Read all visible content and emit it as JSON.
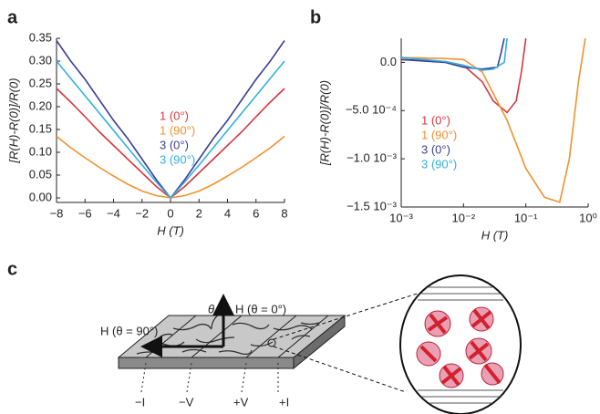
{
  "chart_data": [
    {
      "type": "line",
      "label": "a",
      "ylabel": "[R(H)-R(0)]/R(0)",
      "xlabel": "H (T)",
      "x": [
        -8,
        -7,
        -6,
        -5,
        -4,
        -3,
        -2,
        -1,
        0,
        1,
        2,
        3,
        4,
        5,
        6,
        7,
        8
      ],
      "xlim": [
        -8,
        8
      ],
      "xticks": [
        {
          "value": -8,
          "label": "−8"
        },
        {
          "value": -6,
          "label": "−6"
        },
        {
          "value": -4,
          "label": "−4"
        },
        {
          "value": -2,
          "label": "−2"
        },
        0,
        2,
        4,
        6,
        8
      ],
      "ylim": [
        -0.01,
        0.35
      ],
      "yticks": [
        {
          "value": 0,
          "label": "0.00"
        },
        {
          "value": 0.05,
          "label": "0.05"
        },
        {
          "value": 0.1,
          "label": "0.10"
        },
        {
          "value": 0.15,
          "label": "0.15"
        },
        {
          "value": 0.2,
          "label": "0.20"
        },
        {
          "value": 0.25,
          "label": "0.25"
        },
        {
          "value": 0.3,
          "label": "0.30"
        },
        {
          "value": 0.35,
          "label": "0.35"
        }
      ],
      "series": [
        {
          "name": "1 (0°)",
          "color": "#d9363e",
          "values": [
            0.24,
            0.21,
            0.178,
            0.145,
            0.115,
            0.085,
            0.055,
            0.025,
            0,
            0.025,
            0.055,
            0.085,
            0.115,
            0.145,
            0.178,
            0.21,
            0.24
          ]
        },
        {
          "name": "1 (90°)",
          "color": "#f0922e",
          "values": [
            0.135,
            0.11,
            0.088,
            0.067,
            0.048,
            0.03,
            0.015,
            0.005,
            0,
            0.005,
            0.015,
            0.03,
            0.048,
            0.067,
            0.088,
            0.11,
            0.135
          ]
        },
        {
          "name": "3 (0°)",
          "color": "#3b3f96",
          "values": [
            0.345,
            0.3,
            0.26,
            0.215,
            0.17,
            0.13,
            0.085,
            0.04,
            0,
            0.04,
            0.085,
            0.13,
            0.17,
            0.215,
            0.26,
            0.3,
            0.345
          ]
        },
        {
          "name": "3 (90°)",
          "color": "#31b0e0",
          "values": [
            0.3,
            0.262,
            0.224,
            0.186,
            0.148,
            0.11,
            0.072,
            0.035,
            0,
            0.035,
            0.072,
            0.11,
            0.148,
            0.186,
            0.224,
            0.262,
            0.3
          ]
        }
      ]
    },
    {
      "type": "line",
      "label": "b",
      "ylabel": "[R(H)-R(0)]/R(0)",
      "xlabel": "H (T)",
      "log_x": true,
      "xlim": [
        0.001,
        1
      ],
      "xticks": [
        {
          "value": 0.001,
          "label": "10⁻³"
        },
        {
          "value": 0.01,
          "label": "10⁻²"
        },
        {
          "value": 0.1,
          "label": "10⁻¹"
        },
        {
          "value": 1,
          "label": "10⁰"
        }
      ],
      "ylim": [
        -0.0015,
        0.00025
      ],
      "yticks": [
        {
          "value": 0,
          "label": "0.0"
        },
        {
          "value": -0.0005,
          "label": "−5.0 10⁻⁴"
        },
        {
          "value": -0.001,
          "label": "−1.0 10⁻³"
        },
        {
          "value": -0.0015,
          "label": "−1.5 10⁻³"
        }
      ],
      "series": [
        {
          "name": "1 (0°)",
          "color": "#d9363e",
          "x": [
            0.001,
            0.005,
            0.01,
            0.02,
            0.03,
            0.05,
            0.07,
            0.085,
            0.1
          ],
          "values": [
            3e-05,
            1e-05,
            -3e-05,
            -0.0002,
            -0.0004,
            -0.00052,
            -0.0004,
            -0.0001,
            0.00025
          ]
        },
        {
          "name": "1 (90°)",
          "color": "#f0922e",
          "x": [
            0.001,
            0.005,
            0.01,
            0.02,
            0.05,
            0.1,
            0.2,
            0.35,
            0.5,
            0.7,
            0.9
          ],
          "values": [
            5e-05,
            4e-05,
            3e-05,
            -0.0001,
            -0.0006,
            -0.0011,
            -0.0014,
            -0.00145,
            -0.001,
            -0.0002,
            0.00025
          ]
        },
        {
          "name": "3 (0°)",
          "color": "#3b3f96",
          "x": [
            0.001,
            0.005,
            0.01,
            0.02,
            0.035,
            0.04,
            0.045
          ],
          "values": [
            3e-05,
            0,
            -5e-05,
            -7e-05,
            -5e-05,
            0.0001,
            0.00025
          ]
        },
        {
          "name": "3 (90°)",
          "color": "#31b0e0",
          "x": [
            0.001,
            0.005,
            0.01,
            0.02,
            0.03,
            0.045,
            0.05
          ],
          "values": [
            5e-05,
            1e-05,
            -3e-05,
            -8e-05,
            -7e-05,
            0,
            0.00025
          ]
        }
      ]
    }
  ],
  "diagram": {
    "label": "c",
    "theta": "θ",
    "h_0": "H (θ = 0°)",
    "h_90": "H (θ = 90°)",
    "minus_i": "−I",
    "minus_v": "−V",
    "plus_v": "+V",
    "plus_i": "+I"
  }
}
